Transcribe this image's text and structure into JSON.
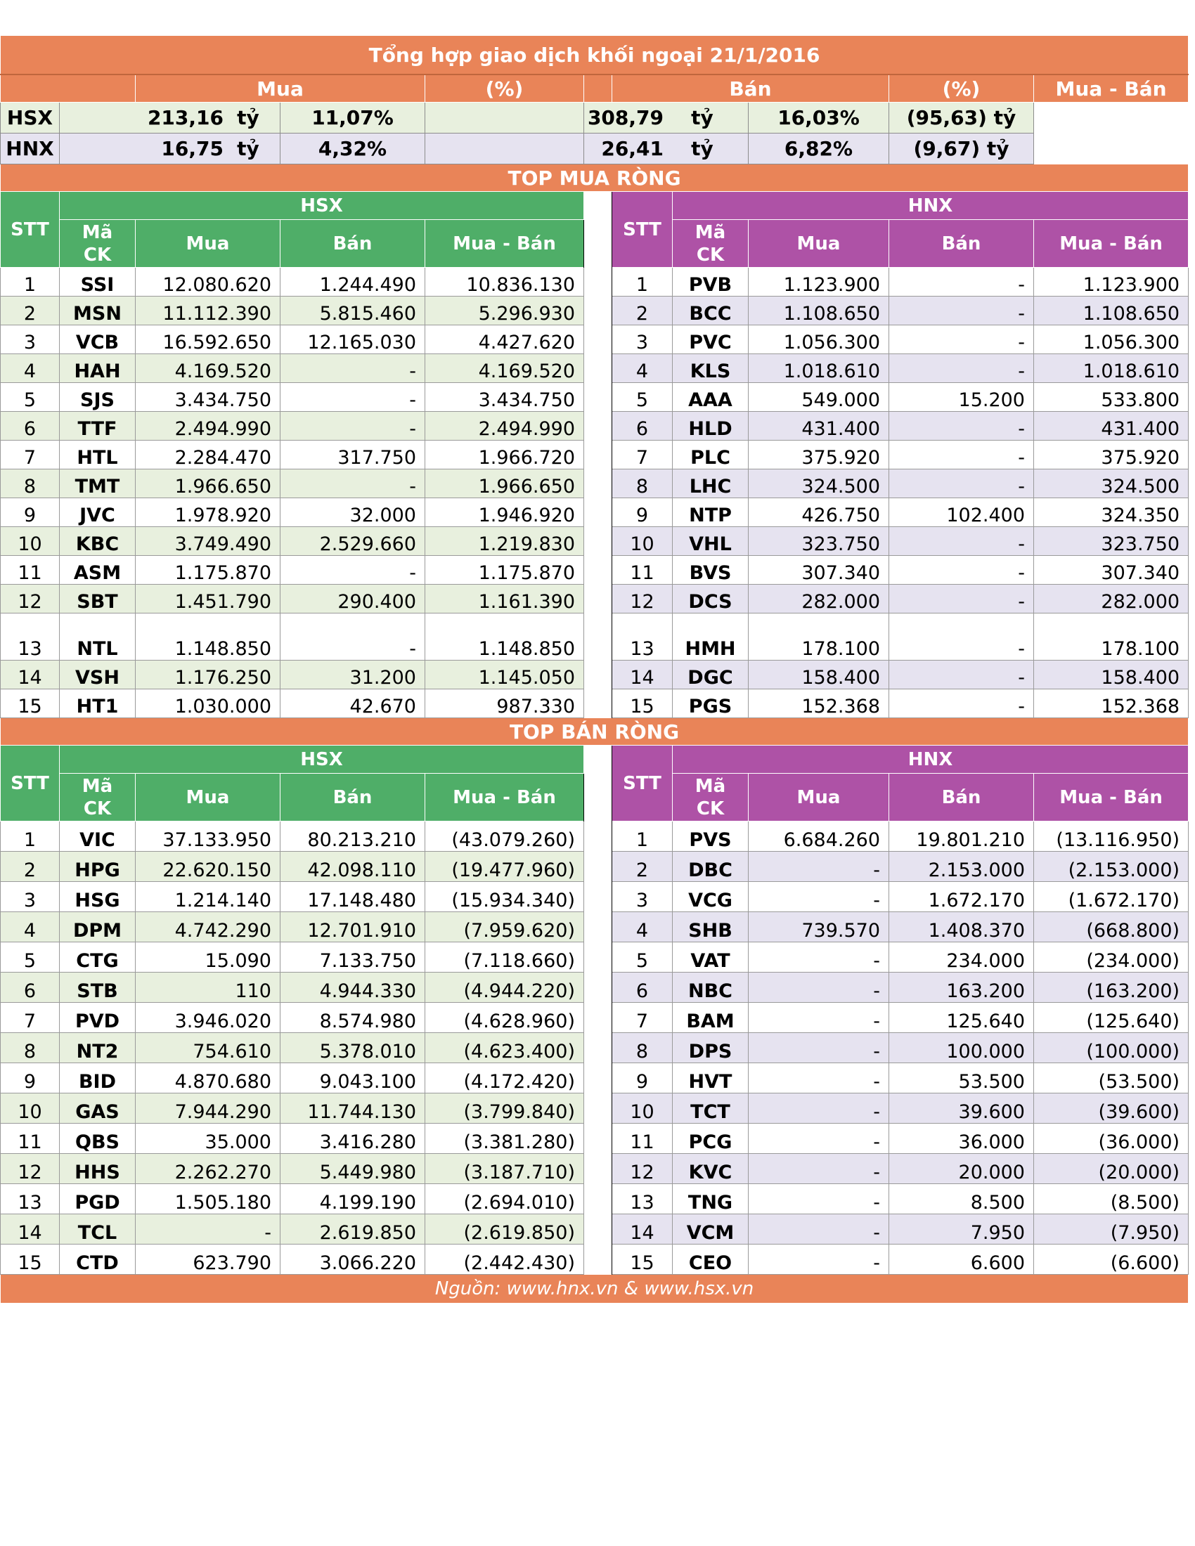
{
  "title": "Tổng hợp giao dịch khối ngoại 21/1/2016",
  "summary": {
    "headers": {
      "mua": "Mua",
      "pct": "(%)",
      "ban": "Bán",
      "pct2": "(%)",
      "net": "Mua - Bán"
    },
    "rows": [
      {
        "exchange": "HSX",
        "buy": "213,16",
        "buy_unit": "tỷ",
        "buy_pct": "11,07%",
        "sell": "308,79",
        "sell_unit": "tỷ",
        "sell_pct": "16,03%",
        "net": "(95,63) tỷ"
      },
      {
        "exchange": "HNX",
        "buy": "16,75",
        "buy_unit": "tỷ",
        "buy_pct": "4,32%",
        "sell": "26,41",
        "sell_unit": "tỷ",
        "sell_pct": "6,82%",
        "net": "(9,67) tỷ"
      }
    ]
  },
  "top_buy": {
    "title": "TOP MUA RÒNG",
    "hsx_label": "HSX",
    "hnx_label": "HNX",
    "col_stt": "STT",
    "col_code_1": "Mã",
    "col_code_2": "CK",
    "col_buy": "Mua",
    "col_sell": "Bán",
    "col_net": "Mua - Bán",
    "hsx": [
      [
        "1",
        "SSI",
        "12.080.620",
        "1.244.490",
        "10.836.130"
      ],
      [
        "2",
        "MSN",
        "11.112.390",
        "5.815.460",
        "5.296.930"
      ],
      [
        "3",
        "VCB",
        "16.592.650",
        "12.165.030",
        "4.427.620"
      ],
      [
        "4",
        "HAH",
        "4.169.520",
        "-",
        "4.169.520"
      ],
      [
        "5",
        "SJS",
        "3.434.750",
        "-",
        "3.434.750"
      ],
      [
        "6",
        "TTF",
        "2.494.990",
        "-",
        "2.494.990"
      ],
      [
        "7",
        "HTL",
        "2.284.470",
        "317.750",
        "1.966.720"
      ],
      [
        "8",
        "TMT",
        "1.966.650",
        "-",
        "1.966.650"
      ],
      [
        "9",
        "JVC",
        "1.978.920",
        "32.000",
        "1.946.920"
      ],
      [
        "10",
        "KBC",
        "3.749.490",
        "2.529.660",
        "1.219.830"
      ],
      [
        "11",
        "ASM",
        "1.175.870",
        "-",
        "1.175.870"
      ],
      [
        "12",
        "SBT",
        "1.451.790",
        "290.400",
        "1.161.390"
      ],
      [
        "13",
        "NTL",
        "1.148.850",
        "-",
        "1.148.850"
      ],
      [
        "14",
        "VSH",
        "1.176.250",
        "31.200",
        "1.145.050"
      ],
      [
        "15",
        "HT1",
        "1.030.000",
        "42.670",
        "987.330"
      ]
    ],
    "hnx": [
      [
        "1",
        "PVB",
        "1.123.900",
        "-",
        "1.123.900"
      ],
      [
        "2",
        "BCC",
        "1.108.650",
        "-",
        "1.108.650"
      ],
      [
        "3",
        "PVC",
        "1.056.300",
        "-",
        "1.056.300"
      ],
      [
        "4",
        "KLS",
        "1.018.610",
        "-",
        "1.018.610"
      ],
      [
        "5",
        "AAA",
        "549.000",
        "15.200",
        "533.800"
      ],
      [
        "6",
        "HLD",
        "431.400",
        "-",
        "431.400"
      ],
      [
        "7",
        "PLC",
        "375.920",
        "-",
        "375.920"
      ],
      [
        "8",
        "LHC",
        "324.500",
        "-",
        "324.500"
      ],
      [
        "9",
        "NTP",
        "426.750",
        "102.400",
        "324.350"
      ],
      [
        "10",
        "VHL",
        "323.750",
        "-",
        "323.750"
      ],
      [
        "11",
        "BVS",
        "307.340",
        "-",
        "307.340"
      ],
      [
        "12",
        "DCS",
        "282.000",
        "-",
        "282.000"
      ],
      [
        "13",
        "HMH",
        "178.100",
        "-",
        "178.100"
      ],
      [
        "14",
        "DGC",
        "158.400",
        "-",
        "158.400"
      ],
      [
        "15",
        "PGS",
        "152.368",
        "-",
        "152.368"
      ]
    ]
  },
  "top_sell": {
    "title": "TOP BÁN RÒNG",
    "hsx_label": "HSX",
    "hnx_label": "HNX",
    "col_stt": "STT",
    "col_code_1": "Mã",
    "col_code_2": "CK",
    "col_buy": "Mua",
    "col_sell": "Bán",
    "col_net": "Mua - Bán",
    "hsx": [
      [
        "1",
        "VIC",
        "37.133.950",
        "80.213.210",
        "(43.079.260)"
      ],
      [
        "2",
        "HPG",
        "22.620.150",
        "42.098.110",
        "(19.477.960)"
      ],
      [
        "3",
        "HSG",
        "1.214.140",
        "17.148.480",
        "(15.934.340)"
      ],
      [
        "4",
        "DPM",
        "4.742.290",
        "12.701.910",
        "(7.959.620)"
      ],
      [
        "5",
        "CTG",
        "15.090",
        "7.133.750",
        "(7.118.660)"
      ],
      [
        "6",
        "STB",
        "110",
        "4.944.330",
        "(4.944.220)"
      ],
      [
        "7",
        "PVD",
        "3.946.020",
        "8.574.980",
        "(4.628.960)"
      ],
      [
        "8",
        "NT2",
        "754.610",
        "5.378.010",
        "(4.623.400)"
      ],
      [
        "9",
        "BID",
        "4.870.680",
        "9.043.100",
        "(4.172.420)"
      ],
      [
        "10",
        "GAS",
        "7.944.290",
        "11.744.130",
        "(3.799.840)"
      ],
      [
        "11",
        "QBS",
        "35.000",
        "3.416.280",
        "(3.381.280)"
      ],
      [
        "12",
        "HHS",
        "2.262.270",
        "5.449.980",
        "(3.187.710)"
      ],
      [
        "13",
        "PGD",
        "1.505.180",
        "4.199.190",
        "(2.694.010)"
      ],
      [
        "14",
        "TCL",
        "-",
        "2.619.850",
        "(2.619.850)"
      ],
      [
        "15",
        "CTD",
        "623.790",
        "3.066.220",
        "(2.442.430)"
      ]
    ],
    "hnx": [
      [
        "1",
        "PVS",
        "6.684.260",
        "19.801.210",
        "(13.116.950)"
      ],
      [
        "2",
        "DBC",
        "-",
        "2.153.000",
        "(2.153.000)"
      ],
      [
        "3",
        "VCG",
        "-",
        "1.672.170",
        "(1.672.170)"
      ],
      [
        "4",
        "SHB",
        "739.570",
        "1.408.370",
        "(668.800)"
      ],
      [
        "5",
        "VAT",
        "-",
        "234.000",
        "(234.000)"
      ],
      [
        "6",
        "NBC",
        "-",
        "163.200",
        "(163.200)"
      ],
      [
        "7",
        "BAM",
        "-",
        "125.640",
        "(125.640)"
      ],
      [
        "8",
        "DPS",
        "-",
        "100.000",
        "(100.000)"
      ],
      [
        "9",
        "HVT",
        "-",
        "53.500",
        "(53.500)"
      ],
      [
        "10",
        "TCT",
        "-",
        "39.600",
        "(39.600)"
      ],
      [
        "11",
        "PCG",
        "-",
        "36.000",
        "(36.000)"
      ],
      [
        "12",
        "KVC",
        "-",
        "20.000",
        "(20.000)"
      ],
      [
        "13",
        "TNG",
        "-",
        "8.500",
        "(8.500)"
      ],
      [
        "14",
        "VCM",
        "-",
        "7.950",
        "(7.950)"
      ],
      [
        "15",
        "CEO",
        "-",
        "6.600",
        "(6.600)"
      ]
    ]
  },
  "footer": "Nguồn: www.hnx.vn   &   www.hsx.vn",
  "colors": {
    "orange": "#E98458",
    "green": "#4FAE68",
    "purple": "#AE52A6",
    "green_tint": "#E8F0DE",
    "purple_tint": "#E6E3F0"
  }
}
